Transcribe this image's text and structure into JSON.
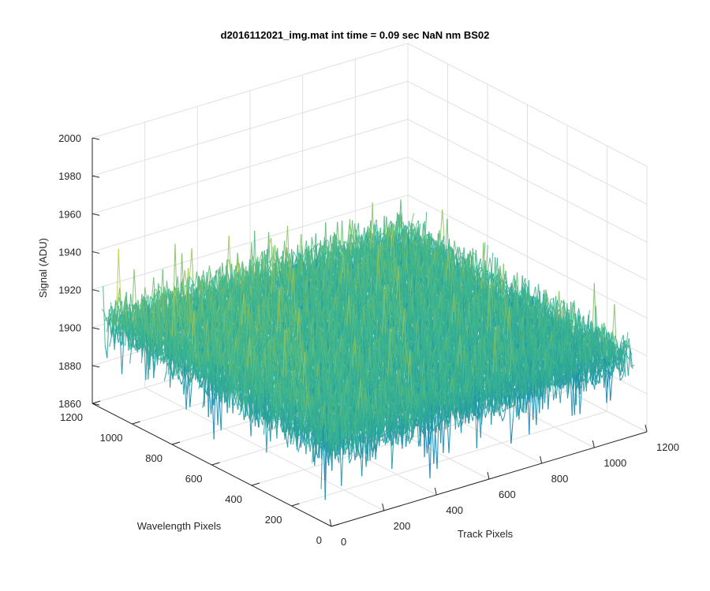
{
  "chart_data": {
    "type": "surface",
    "title": "d2016112021_img.mat int time = 0.09 sec  NaN nm BS02",
    "xlabel": "Track Pixels",
    "ylabel": "Wavelength Pixels",
    "zlabel": "Signal (ADU)",
    "xlim": [
      0,
      1200
    ],
    "ylim": [
      0,
      1200
    ],
    "zlim": [
      1860,
      2000
    ],
    "x_ticks": [
      "0",
      "200",
      "400",
      "600",
      "800",
      "1000",
      "1200"
    ],
    "y_ticks": [
      "0",
      "200",
      "400",
      "600",
      "800",
      "1000",
      "1200"
    ],
    "z_ticks": [
      "1860",
      "1880",
      "1900",
      "1920",
      "1940",
      "1960",
      "1980",
      "2000"
    ],
    "x_tick_values": [
      0,
      200,
      400,
      600,
      800,
      1000,
      1200
    ],
    "y_tick_values": [
      0,
      200,
      400,
      600,
      800,
      1000,
      1200
    ],
    "z_tick_values": [
      1860,
      1880,
      1900,
      1920,
      1940,
      1960,
      1980,
      2000
    ],
    "grid": true,
    "colormap": "parula",
    "surface_x": [
      0,
      250,
      500,
      750,
      1000,
      1152
    ],
    "surface_y": [
      0,
      250,
      500,
      750,
      1000,
      1152
    ],
    "surface_z_mean": [
      [
        1903,
        1902,
        1902,
        1902,
        1901,
        1901
      ],
      [
        1903,
        1903,
        1902,
        1902,
        1902,
        1902
      ],
      [
        1904,
        1905,
        1903,
        1903,
        1903,
        1902
      ],
      [
        1905,
        1906,
        1904,
        1904,
        1904,
        1903
      ],
      [
        1906,
        1906,
        1905,
        1904,
        1905,
        1904
      ],
      [
        1906,
        1906,
        1906,
        1905,
        1905,
        1905
      ]
    ],
    "noise_range": [
      1865,
      1975
    ],
    "colors": {
      "low": "#0072BD",
      "mid": "#3BB58F",
      "high": "#F5D428"
    }
  }
}
